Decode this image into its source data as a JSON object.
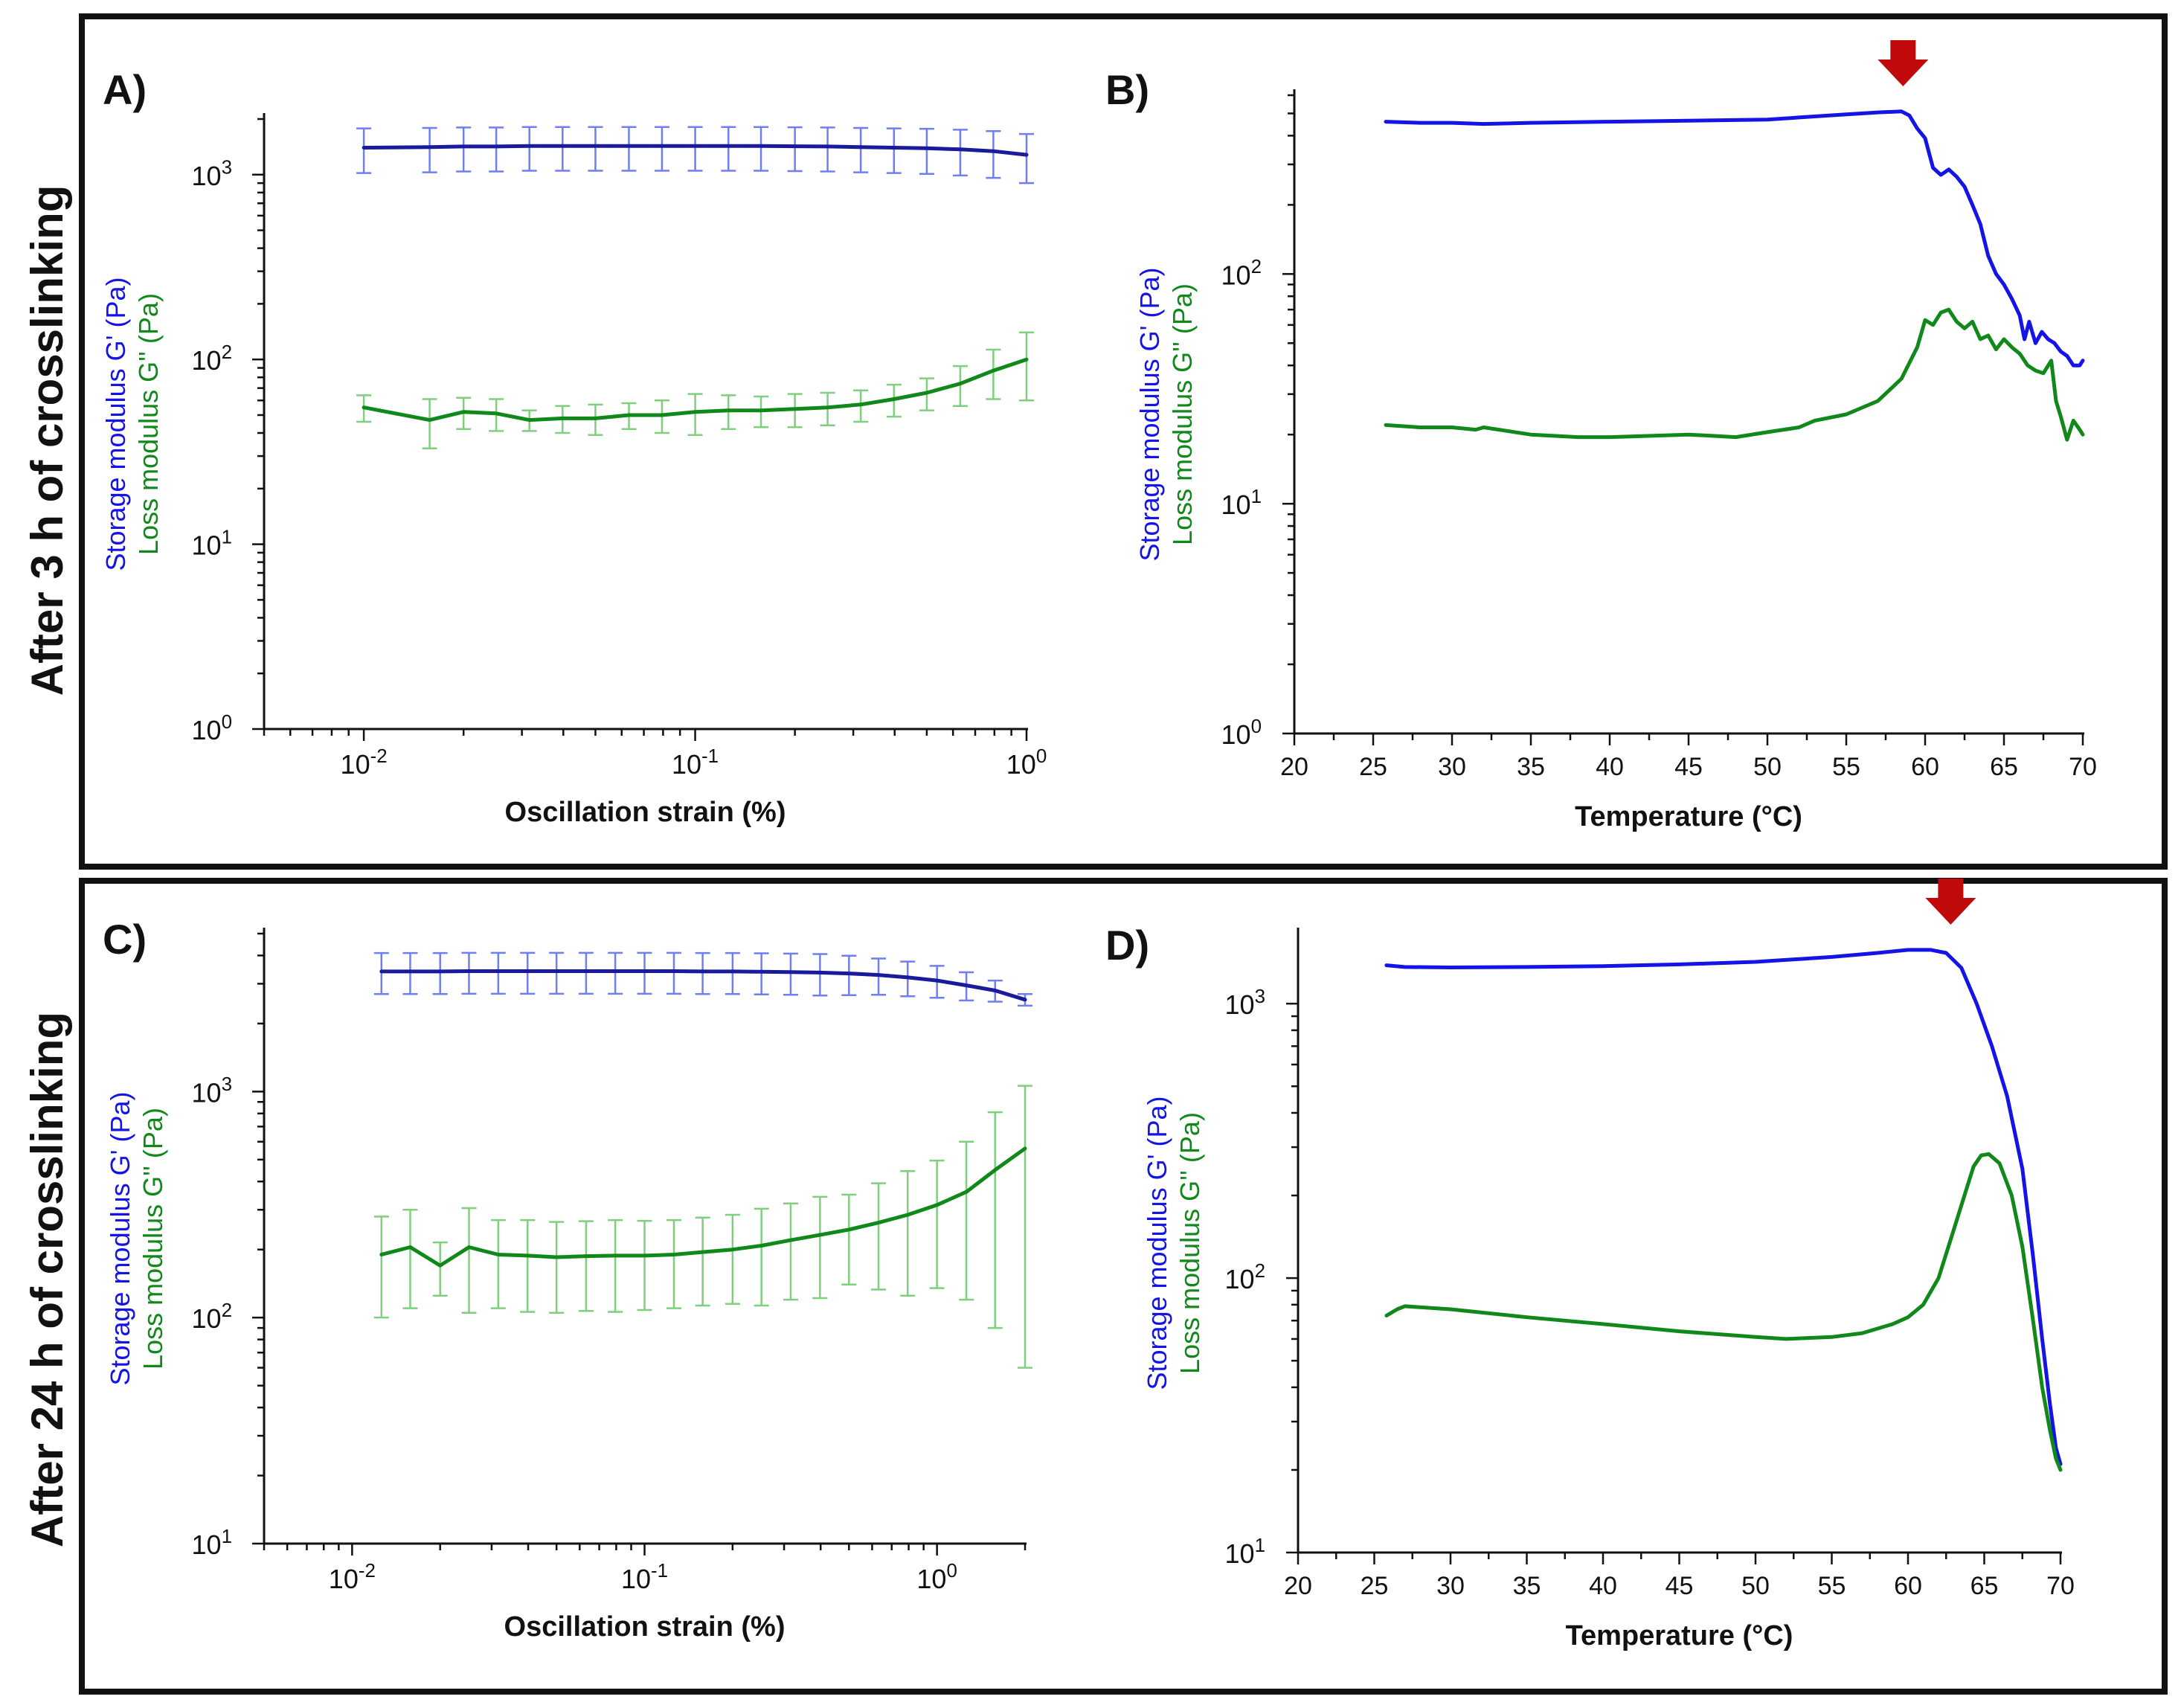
{
  "figure": {
    "row_labels": [
      "After 3 h of crosslinking",
      "After 24 h of crosslinking"
    ],
    "colors": {
      "storage": "#1414e6",
      "storage_dark": "#1a1a9c",
      "loss": "#11891a",
      "storage_err": "#6f7ff0",
      "loss_err": "#7fcf7f",
      "arrow": "#c0090b",
      "frame": "#111111"
    }
  },
  "chart_data": [
    {
      "id": "A",
      "label": "A)",
      "type": "line",
      "xscale": "log",
      "yscale": "log",
      "xlabel": "Oscillation strain (%)",
      "ylabel_storage": "Storage modulus G' (Pa)",
      "ylabel_loss": "Loss modulus G'' (Pa)",
      "xlim": [
        0.005,
        1.0
      ],
      "ylim": [
        1,
        2000
      ],
      "xticks": [
        0.01,
        0.1,
        1
      ],
      "yticks": [
        1,
        10,
        100,
        1000
      ],
      "xtick_labels": [
        {
          "base": "10",
          "exp": "-2"
        },
        {
          "base": "10",
          "exp": "-1"
        },
        {
          "base": "10",
          "exp": "0"
        }
      ],
      "ytick_labels": [
        {
          "base": "10",
          "exp": "0"
        },
        {
          "base": "10",
          "exp": "1"
        },
        {
          "base": "10",
          "exp": "2"
        },
        {
          "base": "10",
          "exp": "3"
        }
      ],
      "series": [
        {
          "name": "Storage modulus G'",
          "color_key": "storage_dark",
          "err_color_key": "storage_err",
          "x": [
            0.01,
            0.0158,
            0.02,
            0.0251,
            0.0316,
            0.0398,
            0.05,
            0.0631,
            0.0794,
            0.1,
            0.126,
            0.158,
            0.2,
            0.251,
            0.316,
            0.398,
            0.5,
            0.631,
            0.794,
            1.0
          ],
          "y": [
            1400,
            1410,
            1420,
            1420,
            1430,
            1430,
            1430,
            1430,
            1430,
            1430,
            1430,
            1430,
            1425,
            1420,
            1410,
            1400,
            1390,
            1370,
            1340,
            1280
          ],
          "err": [
            380,
            380,
            380,
            380,
            380,
            380,
            380,
            380,
            380,
            380,
            380,
            380,
            380,
            380,
            380,
            380,
            380,
            380,
            380,
            380
          ]
        },
        {
          "name": "Loss modulus G''",
          "color_key": "loss",
          "err_color_key": "loss_err",
          "x": [
            0.01,
            0.0158,
            0.02,
            0.0251,
            0.0316,
            0.0398,
            0.05,
            0.0631,
            0.0794,
            0.1,
            0.126,
            0.158,
            0.2,
            0.251,
            0.316,
            0.398,
            0.5,
            0.631,
            0.794,
            1.0
          ],
          "y": [
            55,
            47,
            52,
            51,
            47,
            48,
            48,
            50,
            50,
            52,
            53,
            53,
            54,
            55,
            57,
            61,
            66,
            74,
            87,
            100
          ],
          "err": [
            9,
            14,
            10,
            10,
            6,
            8,
            9,
            8,
            10,
            13,
            11,
            10,
            11,
            11,
            11,
            12,
            13,
            18,
            26,
            40
          ]
        }
      ]
    },
    {
      "id": "B",
      "label": "B)",
      "type": "line",
      "xscale": "linear",
      "yscale": "log",
      "xlabel": "Temperature (°C)",
      "ylabel_storage": "Storage modulus G' (Pa)",
      "ylabel_loss": "Loss modulus G'' (Pa)",
      "xlim": [
        20,
        70
      ],
      "ylim": [
        1,
        600
      ],
      "xticks": [
        20,
        25,
        30,
        35,
        40,
        45,
        50,
        55,
        60,
        65,
        70
      ],
      "xtick_labels": [
        "20",
        "25",
        "30",
        "35",
        "40",
        "45",
        "50",
        "55",
        "60",
        "65",
        "70"
      ],
      "yticks": [
        1,
        10,
        100
      ],
      "ytick_labels": [
        {
          "base": "10",
          "exp": "0"
        },
        {
          "base": "10",
          "exp": "1"
        },
        {
          "base": "10",
          "exp": "2"
        }
      ],
      "arrow_x": 58.6,
      "series": [
        {
          "name": "Storage modulus G'",
          "color_key": "storage",
          "x": [
            25.8,
            28,
            30,
            32,
            35,
            40,
            45,
            50,
            52,
            55,
            57,
            58.5,
            59,
            59.5,
            60,
            60.5,
            61,
            61.5,
            62,
            62.5,
            63,
            63.5,
            64,
            64.5,
            65,
            65.5,
            66,
            66.3,
            66.6,
            67,
            67.4,
            67.8,
            68.2,
            68.6,
            69,
            69.4,
            69.8,
            70
          ],
          "y": [
            460,
            455,
            455,
            450,
            455,
            460,
            465,
            470,
            480,
            495,
            505,
            510,
            490,
            430,
            390,
            290,
            270,
            285,
            265,
            240,
            200,
            165,
            120,
            100,
            90,
            78,
            66,
            52,
            62,
            50,
            56,
            52,
            50,
            46,
            44,
            40,
            40,
            42
          ]
        },
        {
          "name": "Loss modulus G''",
          "color_key": "loss",
          "x": [
            25.8,
            28,
            30,
            31.5,
            32,
            35,
            38,
            40,
            45,
            48,
            50,
            52,
            53,
            55,
            57,
            58.5,
            59.5,
            60,
            60.5,
            61,
            61.5,
            62,
            62.5,
            63,
            63.5,
            64,
            64.5,
            65,
            65.5,
            66,
            66.5,
            67,
            67.5,
            68,
            68.3,
            68.6,
            69,
            69.4,
            69.8,
            70
          ],
          "y": [
            22,
            21.5,
            21.5,
            21,
            21.5,
            20,
            19.5,
            19.5,
            20,
            19.5,
            20.5,
            21.5,
            23,
            24.5,
            28,
            35,
            48,
            63,
            60,
            68,
            70,
            62,
            58,
            62,
            52,
            54,
            47,
            52,
            48,
            45,
            40,
            38,
            37,
            42,
            28,
            24,
            19,
            23,
            21,
            20
          ]
        }
      ]
    },
    {
      "id": "C",
      "label": "C)",
      "type": "line",
      "xscale": "log",
      "yscale": "log",
      "xlabel": "Oscillation strain (%)",
      "ylabel_storage": "Storage modulus G' (Pa)",
      "ylabel_loss": "Loss modulus G'' (Pa)",
      "xlim": [
        0.005,
        2.0
      ],
      "ylim": [
        10,
        5000
      ],
      "xticks": [
        0.01,
        0.1,
        1
      ],
      "yticks": [
        10,
        100,
        1000
      ],
      "xtick_labels": [
        {
          "base": "10",
          "exp": "-2"
        },
        {
          "base": "10",
          "exp": "-1"
        },
        {
          "base": "10",
          "exp": "0"
        }
      ],
      "ytick_labels": [
        {
          "base": "10",
          "exp": "1"
        },
        {
          "base": "10",
          "exp": "2"
        },
        {
          "base": "10",
          "exp": "3"
        }
      ],
      "series": [
        {
          "name": "Storage modulus G'",
          "color_key": "storage_dark",
          "err_color_key": "storage_err",
          "x": [
            0.0126,
            0.0158,
            0.02,
            0.0251,
            0.0316,
            0.0398,
            0.05,
            0.0631,
            0.0794,
            0.1,
            0.126,
            0.158,
            0.2,
            0.251,
            0.316,
            0.398,
            0.5,
            0.631,
            0.794,
            1.0,
            1.26,
            1.58,
            2.0
          ],
          "y": [
            3400,
            3400,
            3400,
            3410,
            3410,
            3410,
            3410,
            3410,
            3410,
            3410,
            3410,
            3400,
            3400,
            3390,
            3380,
            3360,
            3330,
            3280,
            3200,
            3100,
            2950,
            2800,
            2550
          ],
          "err": [
            700,
            700,
            700,
            700,
            700,
            700,
            700,
            700,
            700,
            700,
            700,
            700,
            700,
            700,
            700,
            700,
            660,
            600,
            560,
            500,
            420,
            300,
            150
          ]
        },
        {
          "name": "Loss modulus G''",
          "color_key": "loss",
          "err_color_key": "loss_err",
          "x": [
            0.0126,
            0.0158,
            0.02,
            0.0251,
            0.0316,
            0.0398,
            0.05,
            0.0631,
            0.0794,
            0.1,
            0.126,
            0.158,
            0.2,
            0.251,
            0.316,
            0.398,
            0.5,
            0.631,
            0.794,
            1.0,
            1.26,
            1.58,
            2.0
          ],
          "y": [
            190,
            205,
            170,
            205,
            190,
            188,
            185,
            187,
            188,
            188,
            190,
            195,
            200,
            208,
            220,
            232,
            245,
            263,
            285,
            315,
            360,
            450,
            560
          ],
          "err": [
            90,
            95,
            45,
            100,
            80,
            82,
            80,
            80,
            82,
            80,
            80,
            82,
            85,
            95,
            100,
            110,
            105,
            130,
            160,
            180,
            240,
            360,
            500
          ]
        }
      ]
    },
    {
      "id": "D",
      "label": "D)",
      "type": "line",
      "xscale": "linear",
      "yscale": "log",
      "xlabel": "Temperature (°C)",
      "ylabel_storage": "Storage modulus G' (Pa)",
      "ylabel_loss": "Loss modulus G'' (Pa)",
      "xlim": [
        20,
        70
      ],
      "ylim": [
        10,
        1800
      ],
      "xticks": [
        20,
        25,
        30,
        35,
        40,
        45,
        50,
        55,
        60,
        65,
        70
      ],
      "xtick_labels": [
        "20",
        "25",
        "30",
        "35",
        "40",
        "45",
        "50",
        "55",
        "60",
        "65",
        "70"
      ],
      "yticks": [
        10,
        100,
        1000
      ],
      "ytick_labels": [
        {
          "base": "10",
          "exp": "1"
        },
        {
          "base": "10",
          "exp": "2"
        },
        {
          "base": "10",
          "exp": "3"
        }
      ],
      "arrow_x": 62.8,
      "series": [
        {
          "name": "Storage modulus G'",
          "color_key": "storage",
          "x": [
            25.8,
            27,
            30,
            35,
            40,
            45,
            50,
            55,
            58,
            60,
            61.5,
            62.5,
            63.5,
            64.5,
            65.5,
            66.5,
            67.5,
            68.2,
            68.8,
            69.3,
            69.7,
            70
          ],
          "y": [
            1380,
            1360,
            1355,
            1360,
            1370,
            1390,
            1420,
            1480,
            1530,
            1570,
            1570,
            1530,
            1350,
            1000,
            700,
            460,
            250,
            120,
            60,
            35,
            24,
            21
          ]
        },
        {
          "name": "Loss modulus G''",
          "color_key": "loss",
          "x": [
            25.8,
            26.5,
            27,
            30,
            35,
            40,
            45,
            50,
            52,
            55,
            57,
            59,
            60,
            61,
            62,
            63,
            63.7,
            64.3,
            64.8,
            65.3,
            66,
            66.8,
            67.5,
            68.2,
            68.8,
            69.3,
            69.7,
            70
          ],
          "y": [
            73,
            77,
            79,
            77,
            72,
            68,
            64,
            61,
            60,
            61,
            63,
            68,
            72,
            80,
            100,
            150,
            200,
            255,
            280,
            283,
            262,
            200,
            130,
            70,
            40,
            28,
            22,
            20
          ]
        }
      ]
    }
  ]
}
